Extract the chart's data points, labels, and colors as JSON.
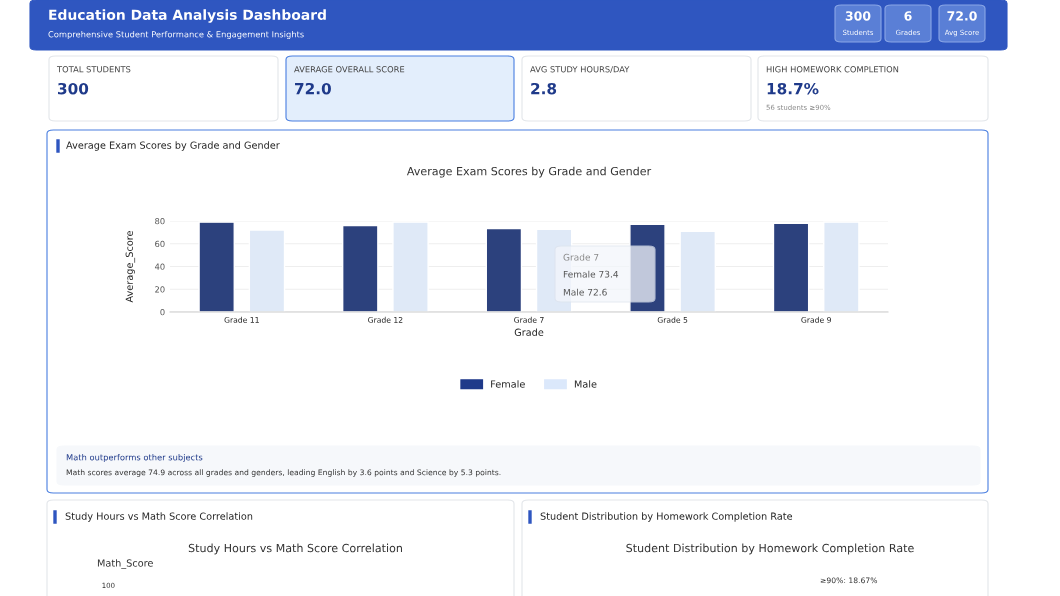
{
  "chart_data": [
    {
      "type": "other",
      "title": "Education Data Analysis Dashboard",
      "subtitle": "Comprehensive Student Performance & Engagement Insights",
      "annotations": [
        "300",
        "Students",
        "6",
        "Grades",
        "72.0",
        "Avg Score"
      ]
    },
    {
      "type": "other",
      "title": "TOTAL STUDENTS",
      "annotations": [
        "300"
      ]
    },
    {
      "type": "other",
      "title": "AVERAGE OVERALL SCORE",
      "annotations": [
        "72.0"
      ]
    },
    {
      "type": "other",
      "title": "AVG STUDY HOURS/DAY",
      "annotations": [
        "2.8"
      ]
    },
    {
      "type": "other",
      "title": "HIGH HOMEWORK COMPLETION",
      "annotations": [
        "18.7%",
        "56 students ≥90%"
      ]
    },
    {
      "type": "bar",
      "title": "Average Exam Scores by Grade and Gender",
      "xlabel": "Grade",
      "ylabel": "Average_Score",
      "categories": [
        "Grade 11",
        "Grade 12",
        "Grade 7",
        "Grade 5",
        "Grade 9"
      ],
      "series": [
        {
          "name": "Female",
          "color": "#1f3a8a",
          "values": [
            79,
            76,
            73.4,
            77,
            78
          ]
        },
        {
          "name": "Male",
          "color": "#dbe8fb",
          "values": [
            72,
            79,
            72.6,
            71,
            79
          ]
        }
      ],
      "ylim": [
        0,
        80
      ],
      "yticks": [
        0,
        20,
        40,
        60,
        80
      ],
      "grid": "y",
      "legend": "bottom",
      "annotations": [
        "Average Exam Scores by Grade and Gender",
        "Grade 7",
        "Female 73.4",
        "Male 72.6",
        "Math outperforms other subjects",
        "Math scores average 74.9 across all grades and genders, leading English by 3.6 points and Science by 5.3 points."
      ]
    },
    {
      "type": "other",
      "title": "Study Hours vs Math Score Correlation",
      "annotations": [
        "Study Hours vs Math Score Correlation",
        "Math_Score",
        "100"
      ]
    },
    {
      "type": "other",
      "title": "Student Distribution by Homework Completion Rate",
      "annotations": [
        "Student Distribution by Homework Completion Rate",
        "≥90%: 18.67%"
      ]
    }
  ]
}
